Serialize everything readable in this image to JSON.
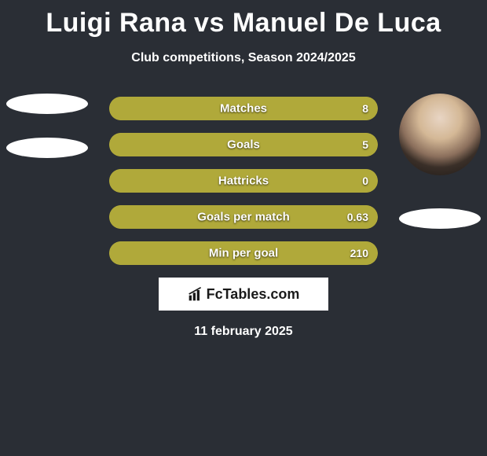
{
  "title": "Luigi Rana vs Manuel De Luca",
  "subtitle": "Club competitions, Season 2024/2025",
  "date": "11 february 2025",
  "brand": "FcTables.com",
  "colors": {
    "background": "#2a2e35",
    "bar_fill": "#b0a93a",
    "bar_border": "#b0a93a",
    "text": "#ffffff"
  },
  "bars": [
    {
      "label": "Matches",
      "left_value": "",
      "right_value": "8",
      "left_pct": 0.04,
      "right_pct": 0.96
    },
    {
      "label": "Goals",
      "left_value": "",
      "right_value": "5",
      "left_pct": 0.04,
      "right_pct": 0.96
    },
    {
      "label": "Hattricks",
      "left_value": "",
      "right_value": "0",
      "left_pct": 0.04,
      "right_pct": 0.96
    },
    {
      "label": "Goals per match",
      "left_value": "",
      "right_value": "0.63",
      "left_pct": 0.04,
      "right_pct": 0.96
    },
    {
      "label": "Min per goal",
      "left_value": "",
      "right_value": "210",
      "left_pct": 0.04,
      "right_pct": 0.96
    }
  ],
  "left_player": {
    "avatar_type": "ellipse",
    "ellipse_count": 2
  },
  "right_player": {
    "avatar_type": "photo",
    "extra_ellipse": true
  }
}
